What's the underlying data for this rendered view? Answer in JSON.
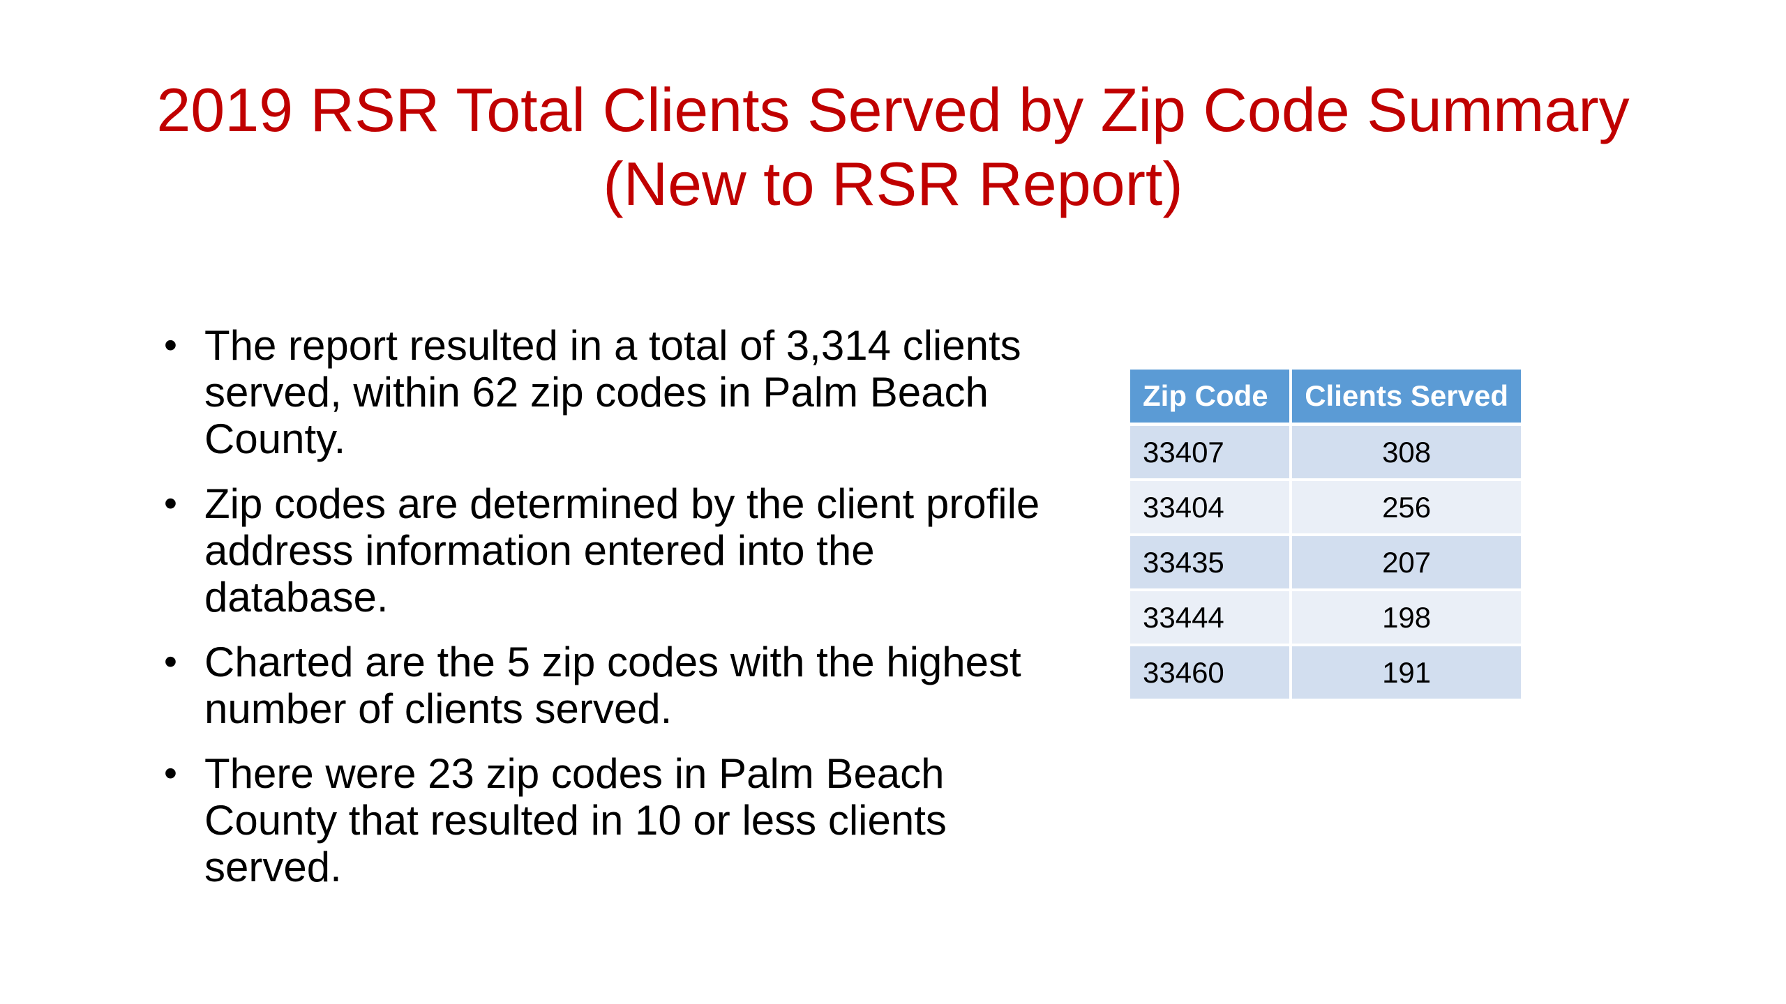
{
  "slide": {
    "title_line1": "2019 RSR Total Clients Served by Zip Code Summary",
    "title_line2": "(New to RSR Report)",
    "bullet_symbol": "•",
    "bullets": [
      "The report resulted in a total of 3,314 clients served, within 62 zip codes in Palm Beach County.",
      "Zip codes are determined by the client profile address information entered into the database.",
      "Charted are the 5 zip codes with the highest number of clients served.",
      "There were 23 zip codes in Palm Beach County that resulted in 10 or less clients served."
    ],
    "table": {
      "headers": [
        "Zip Code",
        "Clients Served"
      ],
      "rows": [
        [
          "33407",
          "308"
        ],
        [
          "33404",
          "256"
        ],
        [
          "33435",
          "207"
        ],
        [
          "33444",
          "198"
        ],
        [
          "33460",
          "191"
        ]
      ]
    },
    "colors": {
      "title": "#c00000",
      "table_header": "#5b9bd5",
      "table_row_dark": "#d2deef",
      "table_row_light": "#eaeff7"
    }
  }
}
